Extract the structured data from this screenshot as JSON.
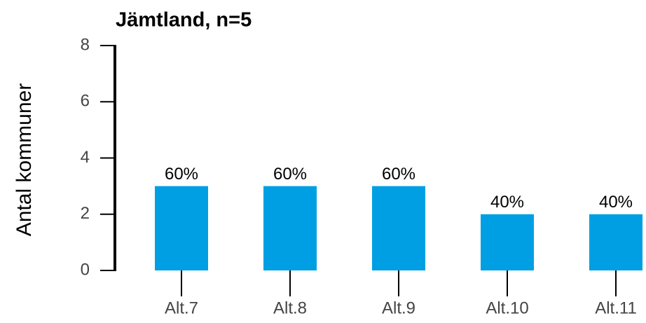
{
  "chart_data": {
    "type": "bar",
    "title": "Jämtland, n=5",
    "y_label": "Antal kommuner",
    "categories": [
      "Alt.7",
      "Alt.8",
      "Alt.9",
      "Alt.10",
      "Alt.11"
    ],
    "values": [
      3,
      3,
      3,
      2,
      2
    ],
    "value_labels": [
      "60%",
      "60%",
      "60%",
      "40%",
      "40%"
    ],
    "color": "#009fe3",
    "ylim": [
      0,
      8
    ],
    "yticks": [
      0,
      2,
      4,
      6,
      8
    ],
    "grid": false
  }
}
